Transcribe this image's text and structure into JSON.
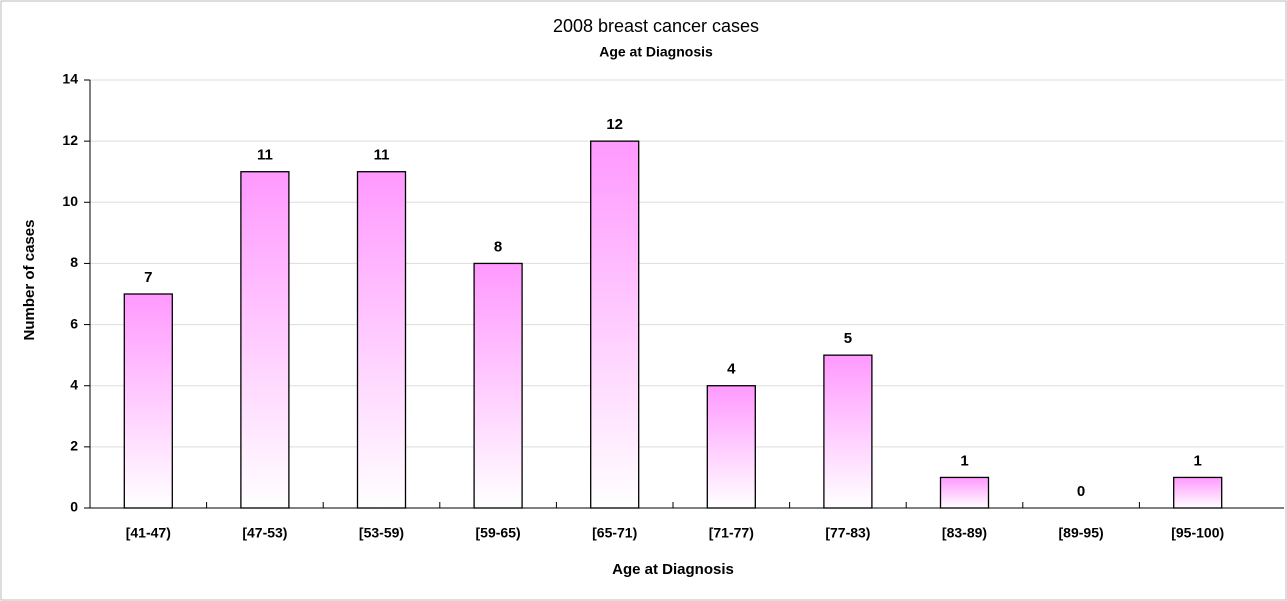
{
  "chart_data": {
    "type": "bar",
    "title": "2008 breast cancer cases",
    "subtitle": "Age at Diagnosis",
    "x_label": "Age at Diagnosis",
    "y_label": "Number of cases",
    "categories": [
      "[41-47)",
      "[47-53)",
      "[53-59)",
      "[59-65)",
      "[65-71)",
      "[71-77)",
      "[77-83)",
      "[83-89)",
      "[89-95)",
      "[95-100)"
    ],
    "values": [
      7,
      11,
      11,
      8,
      12,
      4,
      5,
      1,
      0,
      1
    ],
    "color": "#ff99ff",
    "ylim": [
      0,
      14
    ],
    "yticks": [
      0,
      2,
      4,
      6,
      8,
      10,
      12,
      14
    ],
    "grid": true
  }
}
